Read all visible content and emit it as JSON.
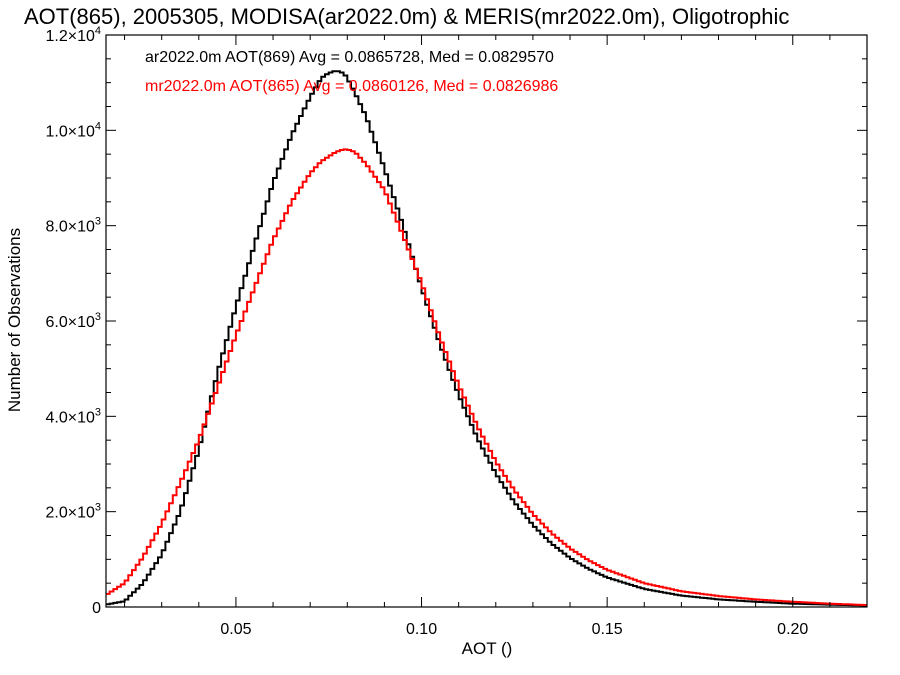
{
  "chart_data": {
    "type": "line",
    "title": "AOT(865), 2005305, MODISA(ar2022.0m) & MERIS(mr2022.0m), Oligotrophic",
    "xlabel": "AOT ()",
    "ylabel": "Number of Observations",
    "xlim": [
      0.015,
      0.22
    ],
    "ylim": [
      0,
      12000
    ],
    "x_ticks": [
      0.05,
      0.1,
      0.15,
      0.2
    ],
    "x_tick_labels": [
      "0.05",
      "0.10",
      "0.15",
      "0.20"
    ],
    "y_ticks": [
      0,
      2000,
      4000,
      6000,
      8000,
      10000,
      12000
    ],
    "y_tick_labels": [
      {
        "mantissa": "0",
        "exp": ""
      },
      {
        "mantissa": "2.0×10",
        "exp": "3"
      },
      {
        "mantissa": "4.0×10",
        "exp": "3"
      },
      {
        "mantissa": "6.0×10",
        "exp": "3"
      },
      {
        "mantissa": "8.0×10",
        "exp": "3"
      },
      {
        "mantissa": "1.0×10",
        "exp": "4"
      },
      {
        "mantissa": "1.2×10",
        "exp": "4"
      }
    ],
    "grid": false,
    "legend_position": "top-left",
    "series": [
      {
        "name": "ar2022.0m AOT(869) Avg = 0.0865728, Med = 0.0829570",
        "color": "#000000",
        "x": [
          0.015,
          0.02,
          0.025,
          0.03,
          0.035,
          0.04,
          0.045,
          0.05,
          0.055,
          0.06,
          0.065,
          0.07,
          0.073,
          0.075,
          0.077,
          0.079,
          0.08,
          0.082,
          0.085,
          0.09,
          0.095,
          0.1,
          0.105,
          0.11,
          0.115,
          0.12,
          0.125,
          0.13,
          0.135,
          0.14,
          0.145,
          0.15,
          0.16,
          0.17,
          0.18,
          0.19,
          0.2,
          0.21,
          0.22
        ],
        "y": [
          50,
          120,
          500,
          1100,
          2000,
          3300,
          4900,
          6300,
          7600,
          8900,
          9900,
          10700,
          11100,
          11200,
          11250,
          11200,
          11100,
          10800,
          10300,
          9200,
          8000,
          6700,
          5500,
          4450,
          3550,
          2800,
          2200,
          1720,
          1330,
          1030,
          800,
          620,
          380,
          240,
          160,
          110,
          70,
          50,
          30
        ]
      },
      {
        "name": "mr2022.0m AOT(865) Avg = 0.0860126, Med = 0.0826986",
        "color": "#ff0000",
        "x": [
          0.015,
          0.02,
          0.025,
          0.03,
          0.035,
          0.04,
          0.045,
          0.05,
          0.055,
          0.06,
          0.065,
          0.07,
          0.073,
          0.075,
          0.077,
          0.079,
          0.08,
          0.082,
          0.085,
          0.09,
          0.095,
          0.1,
          0.105,
          0.11,
          0.115,
          0.12,
          0.125,
          0.13,
          0.135,
          0.14,
          0.145,
          0.15,
          0.16,
          0.17,
          0.18,
          0.19,
          0.2,
          0.21,
          0.22
        ],
        "y": [
          250,
          500,
          1050,
          1750,
          2600,
          3500,
          4600,
          5700,
          6700,
          7700,
          8500,
          9100,
          9350,
          9450,
          9550,
          9600,
          9600,
          9550,
          9300,
          8750,
          7800,
          6800,
          5650,
          4650,
          3800,
          3050,
          2450,
          1950,
          1550,
          1230,
          980,
          780,
          500,
          330,
          230,
          160,
          110,
          70,
          40
        ]
      }
    ]
  }
}
